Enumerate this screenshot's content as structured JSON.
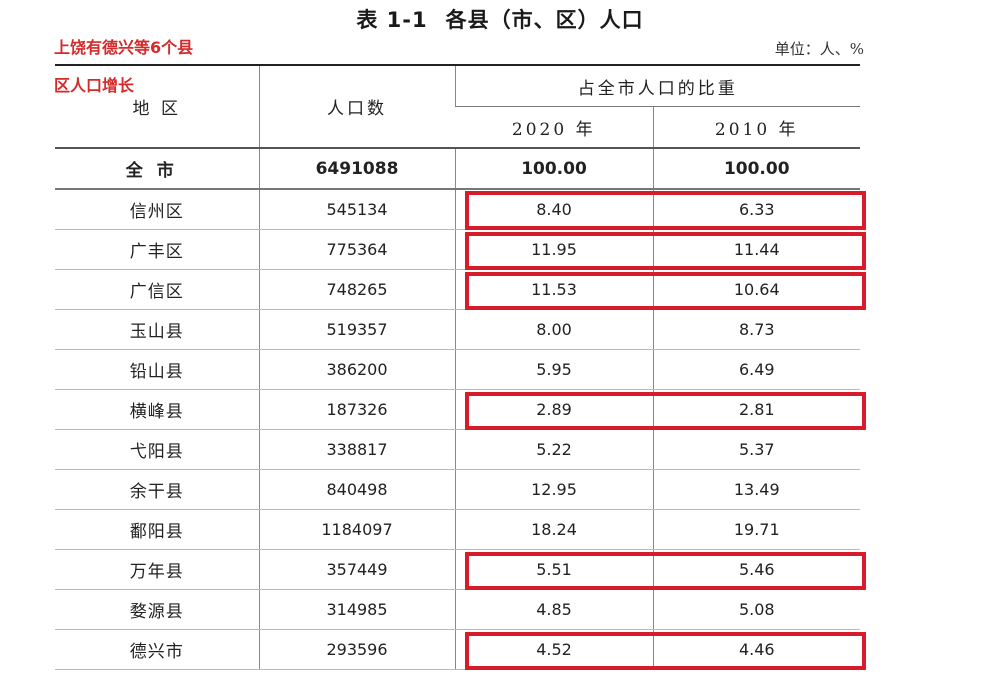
{
  "title": {
    "label": "表 1-1",
    "text": "各县（市、区）人口"
  },
  "unit": "单位：人、%",
  "annotation": {
    "line1": "上饶有德兴等6个县",
    "line2": "区人口增长"
  },
  "table": {
    "headers": {
      "region": "地 区",
      "population": "人口数",
      "share_group": "占全市人口的比重",
      "year_a": "2020 年",
      "year_b": "2010 年"
    },
    "total": {
      "name": "全市",
      "population": "6491088",
      "share_2020": "100.00",
      "share_2010": "100.00"
    },
    "rows": [
      {
        "name": "信州区",
        "population": "545134",
        "share_2020": "8.40",
        "share_2010": "6.33",
        "highlighted": true
      },
      {
        "name": "广丰区",
        "population": "775364",
        "share_2020": "11.95",
        "share_2010": "11.44",
        "highlighted": true
      },
      {
        "name": "广信区",
        "population": "748265",
        "share_2020": "11.53",
        "share_2010": "10.64",
        "highlighted": true
      },
      {
        "name": "玉山县",
        "population": "519357",
        "share_2020": "8.00",
        "share_2010": "8.73",
        "highlighted": false
      },
      {
        "name": "铅山县",
        "population": "386200",
        "share_2020": "5.95",
        "share_2010": "6.49",
        "highlighted": false
      },
      {
        "name": "横峰县",
        "population": "187326",
        "share_2020": "2.89",
        "share_2010": "2.81",
        "highlighted": true
      },
      {
        "name": "弋阳县",
        "population": "338817",
        "share_2020": "5.22",
        "share_2010": "5.37",
        "highlighted": false
      },
      {
        "name": "余干县",
        "population": "840498",
        "share_2020": "12.95",
        "share_2010": "13.49",
        "highlighted": false
      },
      {
        "name": "鄱阳县",
        "population": "1184097",
        "share_2020": "18.24",
        "share_2010": "19.71",
        "highlighted": false
      },
      {
        "name": "万年县",
        "population": "357449",
        "share_2020": "5.51",
        "share_2010": "5.46",
        "highlighted": true
      },
      {
        "name": "婺源县",
        "population": "314985",
        "share_2020": "4.85",
        "share_2010": "5.08",
        "highlighted": false
      },
      {
        "name": "德兴市",
        "population": "293596",
        "share_2020": "4.52",
        "share_2010": "4.46",
        "highlighted": true
      }
    ]
  },
  "colors": {
    "highlight": "#d61c2a",
    "annotation": "#d42a2a"
  }
}
